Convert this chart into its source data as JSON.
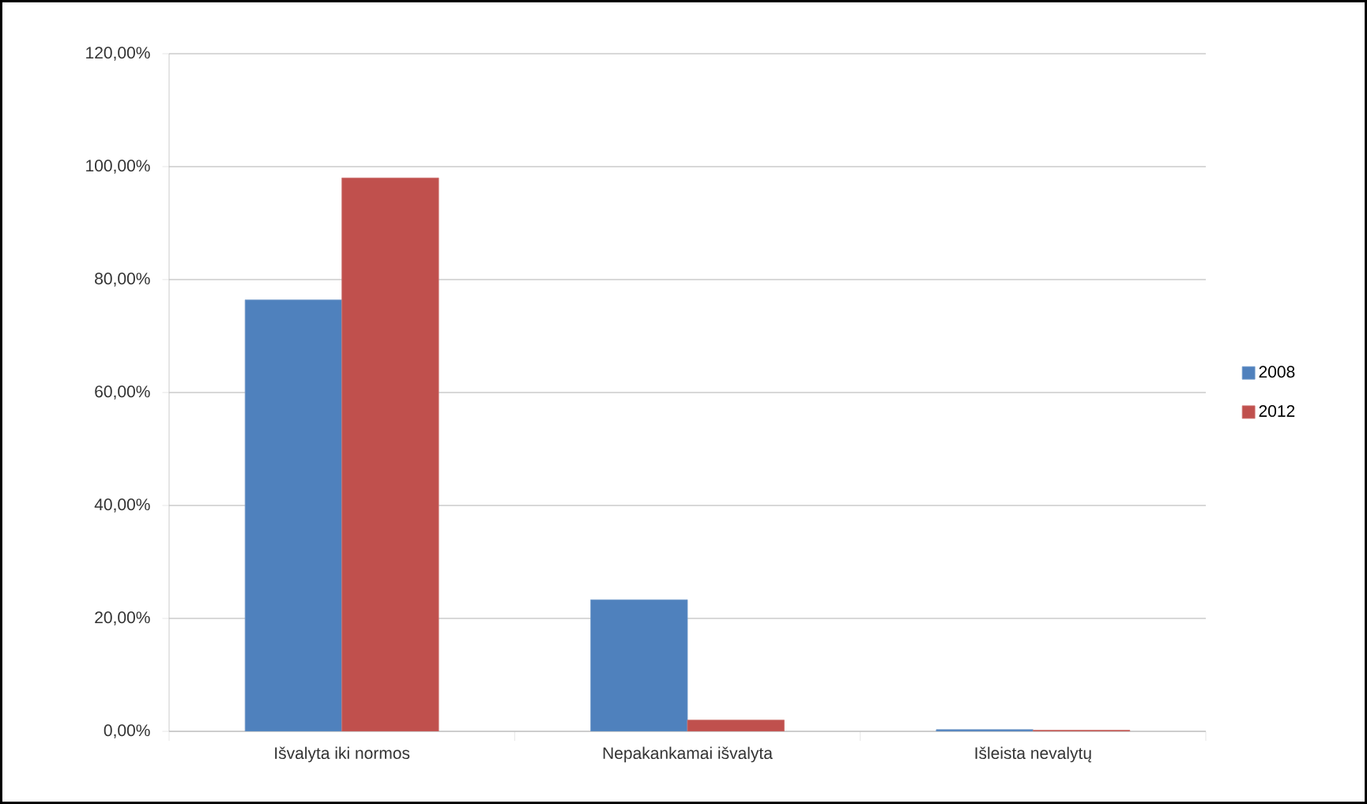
{
  "chart_data": {
    "type": "bar",
    "categories": [
      "Išvalyta iki normos",
      "Nepakankamai išvalyta",
      "Išleista nevalytų"
    ],
    "series": [
      {
        "name": "2008",
        "color": "#4f81bd",
        "values": [
          76.4,
          23.3,
          0.3
        ]
      },
      {
        "name": "2012",
        "color": "#c0504d",
        "values": [
          98.0,
          2.0,
          0.2
        ]
      }
    ],
    "ylim": [
      0,
      120
    ],
    "yticks": [
      {
        "value": 0,
        "label": "0,00%"
      },
      {
        "value": 20,
        "label": "20,00%"
      },
      {
        "value": 40,
        "label": "40,00%"
      },
      {
        "value": 60,
        "label": "60,00%"
      },
      {
        "value": 80,
        "label": "80,00%"
      },
      {
        "value": 100,
        "label": "100,00%"
      },
      {
        "value": 120,
        "label": "120,00%"
      }
    ],
    "grid": "y",
    "legend": "right"
  }
}
